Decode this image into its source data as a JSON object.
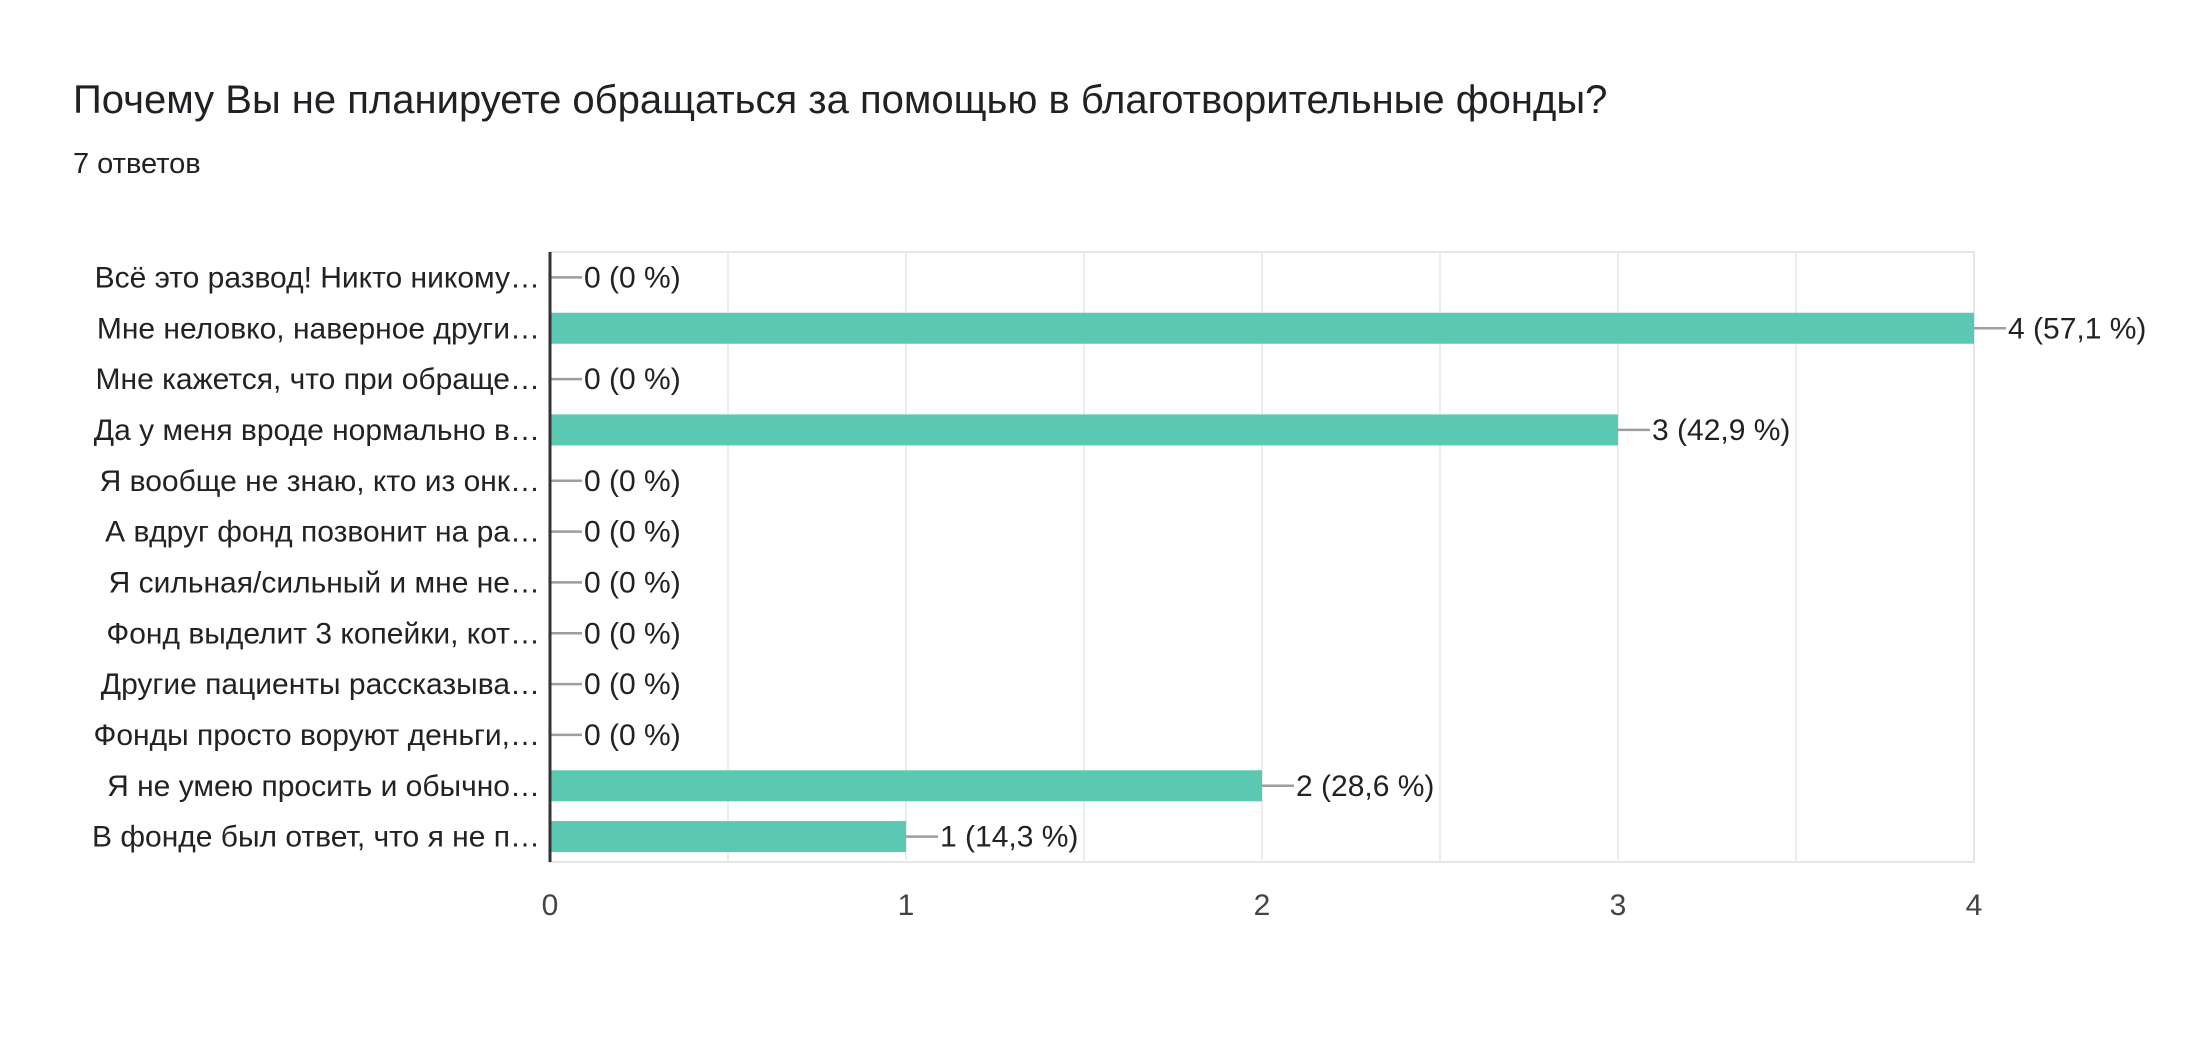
{
  "title": "Почему Вы не планируете обращаться за помощью в благотворительные фонды?",
  "subtitle": "7 ответов",
  "chart_data": {
    "type": "bar",
    "orientation": "horizontal",
    "categories": [
      "Всё это развод! Никто никому…",
      "Мне неловко, наверное други…",
      "Мне кажется, что при обраще…",
      "Да у меня вроде нормально в…",
      "Я вообще не знаю, кто из онк…",
      "А вдруг фонд позвонит на ра…",
      "Я сильная/сильный и мне не…",
      "Фонд выделит 3 копейки, кот…",
      "Другие пациенты рассказыва…",
      "Фонды просто воруют деньги,…",
      "Я не умею просить и обычно…",
      "В фонде был ответ, что я не п…"
    ],
    "values": [
      0,
      4,
      0,
      3,
      0,
      0,
      0,
      0,
      0,
      0,
      2,
      1
    ],
    "data_labels": [
      "0 (0 %)",
      "4 (57,1 %)",
      "0 (0 %)",
      "3 (42,9 %)",
      "0 (0 %)",
      "0 (0 %)",
      "0 (0 %)",
      "0 (0 %)",
      "0 (0 %)",
      "0 (0 %)",
      "2 (28,6 %)",
      "1 (14,3 %)"
    ],
    "xticks": [
      "0",
      "1",
      "2",
      "3",
      "4"
    ],
    "xlim": [
      0,
      4
    ],
    "grid": true,
    "bar_color": "#5bc8b2"
  }
}
